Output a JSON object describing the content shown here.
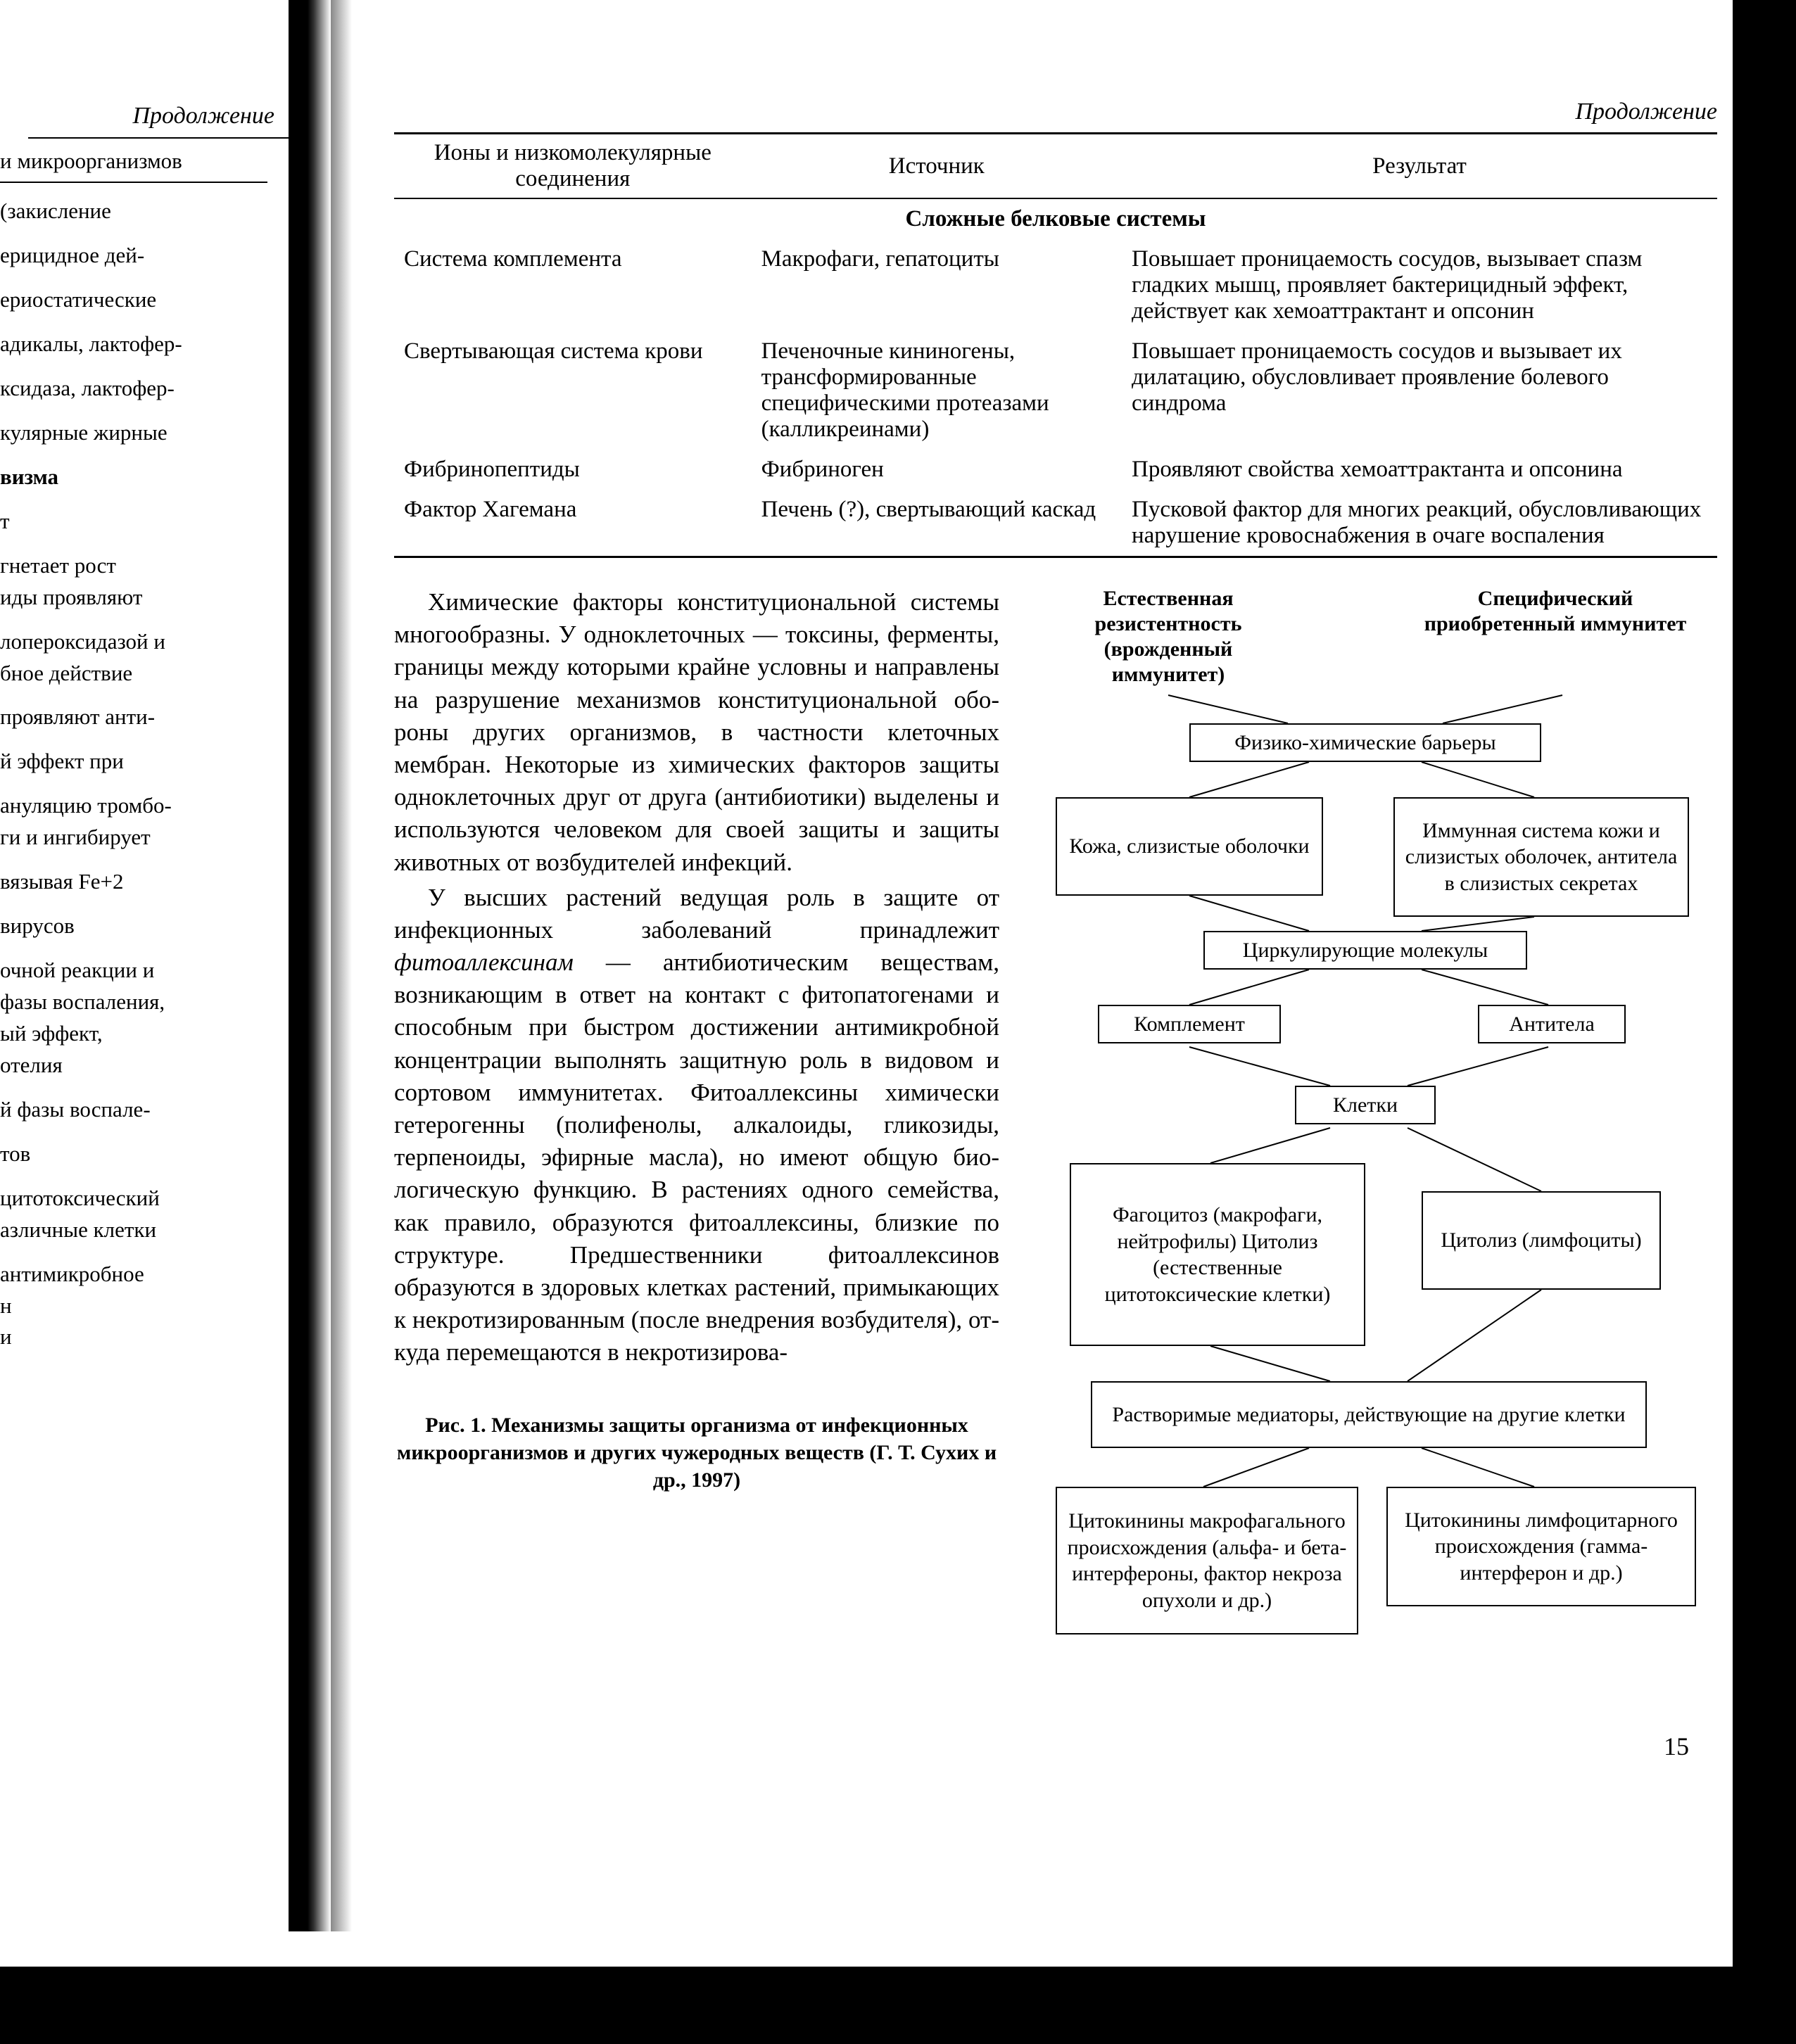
{
  "left": {
    "continuation": "Продолжение",
    "header_fragment": "и микроорганизмов",
    "fragments": [
      "(закисление",
      "ерицидное дей-",
      "ериостатические",
      "адикалы, лактофер-",
      "ксидаза, лактофер-",
      "кулярные жирные",
      "визма",
      "т",
      "гнетает рост\nиды проявляют",
      "лопероксидазой и\nбное действие",
      "проявляют анти-",
      "й эффект при",
      "ануляцию тромбо-\nги и ингибирует",
      "вязывая Fe+2",
      "вирусов",
      "очной реакции и\nфазы воспаления,\nый эффект,\nотелия",
      "й фазы воспале-",
      "тов",
      "цитотоксический\nазличные клетки",
      "антимикробное\nн\nи"
    ],
    "bold_index": 6
  },
  "continuation_right": "Продолжение",
  "table": {
    "headers": [
      "Ионы и низкомолекулярные соединения",
      "Источник",
      "Результат"
    ],
    "col_widths": [
      "27%",
      "28%",
      "45%"
    ],
    "section_title": "Сложные белковые системы",
    "rows": [
      {
        "c1": "Система комплемента",
        "c2": "Макрофаги, гепатоциты",
        "c3": "Повышает проницаемость сосудов, вызывает спазм гладких мышц, проявляет бактерицид­ный эффект, действует как хемоаттрактант и опсонин"
      },
      {
        "c1": "Свертывающая система крови",
        "c2": "Печеночные кининоге­ны, трансформирован­ные специфическими протеазами (калликреи­нами)",
        "c3": "Повышает проницаемость сосудов и вызывает их дилатацию, обусловливает проявление болевого синдрома"
      },
      {
        "c1": "Фибринопептиды",
        "c2": "Фибриноген",
        "c3": "Проявляют свойства хемоаттрактанта и опсонина"
      },
      {
        "c1": "Фактор Хагемана",
        "c2": "Печень (?), свертываю­щий каскад",
        "c3": "Пусковой фактор для многих реакций, обусловливающих нарушение кровоснабже­ния в очаге воспаления"
      }
    ]
  },
  "body": {
    "p1": "Химические факторы конституцио­нальной системы многообразны. У од­ноклеточных — токсины, ферменты, границы между которыми крайне ус­ловны и направлены на разрушение механизмов конституциональной обо­роны других организмов, в частности клеточных мембран. Некоторые из хи­мических факторов защиты однокле­точных друг от друга (антибиотики) выделены и используются человеком для своей защиты и защиты животных от возбудителей инфекций.",
    "p2": "У высших растений ведущая роль в защите от инфекционных заболеваний принадлежит фитоаллексинам — анти­биотическим веществам, возникающим в ответ на контакт с фитопатогенами и способным при быстром достижении антимикробной концентрации выпол­нять защитную роль в видовом и сорто­вом иммунитетах. Фитоаллексины хи­мически гетерогенны (полифенолы, алкалоиды, гликозиды, терпеноиды, эфирные масла), но имеют общую био­логическую функцию. В растениях од­ного семейства, как правило, образуют­ся фитоаллексины, близкие по структу­ре. Предшественники фитоаллексинов образуются в здоровых клетках расте­ний, примыкающих к некротизирован­ным (после внедрения возбудителя), от­куда перемещаются в некротизирова-",
    "italic_word": "фитоаллексинам"
  },
  "figure_caption": "Рис. 1. Механизмы защиты организма от инфекционных микроорганизмов и других чужеродных веществ (Г. Т. Сухих и др., 1997)",
  "diagram": {
    "left_header": "Естественная резистентность (врожденный иммунитет)",
    "right_header": "Специфический приобретенный иммунитет",
    "row1_center": "Физико-химические барьеры",
    "row2_left": "Кожа, слизистые оболочки",
    "row2_right": "Иммунная система кожи и слизистых оболочек, антитела в слизистых секретах",
    "row3_center": "Циркулирующие молекулы",
    "row4_left": "Комплемент",
    "row4_right": "Антитела",
    "row5_center": "Клетки",
    "row6_left": "Фагоцитоз (макрофаги, нейтрофилы) Цитолиз (естественные цитотоксические клетки)",
    "row6_right": "Цитолиз (лимфоциты)",
    "row7_center": "Растворимые медиаторы, действующие на другие клетки",
    "row8_left": "Цитокинины макро­фагального происхож­дения (альфа- и бета-интерфероны, фактор некроза опухоли и др.)",
    "row8_right": "Цитокинины лимфоци­тарного происхождения (гамма-интерферон и др.)"
  },
  "page_number": "15",
  "colors": {
    "text": "#000000",
    "bg": "#ffffff"
  }
}
